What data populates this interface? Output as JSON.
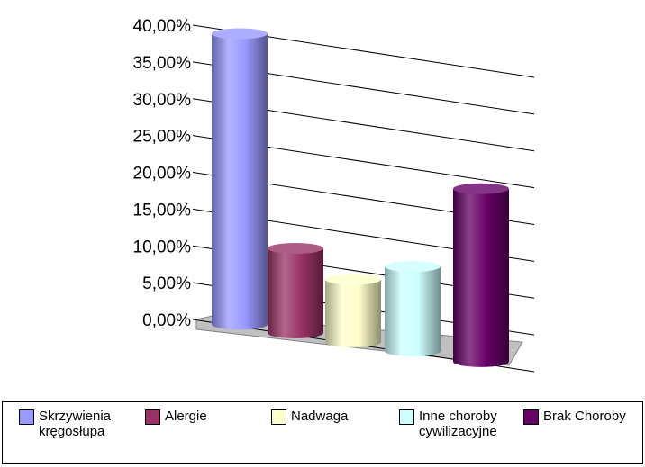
{
  "chart_data": {
    "type": "bar",
    "categories": [
      "Skrzywienia\nkręgosłupa",
      "Alergie",
      "Nadwaga",
      "Inne choroby\ncywilizacyjne",
      "Brak Choroby"
    ],
    "values": [
      39.5,
      11.5,
      8.5,
      11.5,
      23.5
    ],
    "colors": [
      "#9999ff",
      "#993366",
      "#ffffcc",
      "#ccffff",
      "#660066"
    ],
    "ylim": [
      0,
      40
    ],
    "yticks": [
      "0,00%",
      "5,00%",
      "10,00%",
      "15,00%",
      "20,00%",
      "25,00%",
      "30,00%",
      "35,00%",
      "40,00%"
    ],
    "grid": true,
    "legend_position": "bottom"
  },
  "legend": {
    "items": [
      {
        "label": "Skrzywienia\nkręgosłupa",
        "color": "#9999ff"
      },
      {
        "label": "Alergie",
        "color": "#993366"
      },
      {
        "label": "Nadwaga",
        "color": "#ffffcc"
      },
      {
        "label": "Inne choroby\ncywilizacyjne",
        "color": "#ccffff"
      },
      {
        "label": "Brak Choroby",
        "color": "#660066"
      }
    ]
  }
}
